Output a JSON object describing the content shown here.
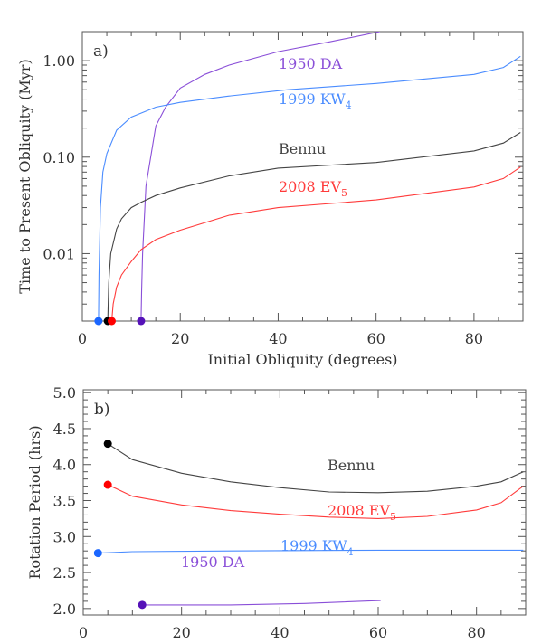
{
  "chart_data": [
    {
      "type": "line",
      "panel_label": "a)",
      "xlabel": "Initial Obliquity (degrees)",
      "ylabel": "Time to Present Obliquity (Myr)",
      "xlim": [
        0,
        90
      ],
      "ylim": [
        0.002,
        2
      ],
      "yscale": "log",
      "xticks": [
        "0",
        "20",
        "40",
        "60",
        "80"
      ],
      "yticks": [
        "0.01",
        "0.10",
        "1.00"
      ],
      "grid": false,
      "series": [
        {
          "name": "1950 DA",
          "label_sub": "",
          "color": "#8a4fd8",
          "marker_color": "#5512b8",
          "x": [
            12,
            12.1,
            12.3,
            13,
            15,
            17,
            20,
            25,
            30,
            40,
            50,
            60.8
          ],
          "y": [
            0.002,
            0.004,
            0.01,
            0.05,
            0.21,
            0.33,
            0.52,
            0.72,
            0.9,
            1.24,
            1.55,
            2.0
          ]
        },
        {
          "name": "1999 KW",
          "label_sub": "4",
          "color": "#4a8cff",
          "marker_color": "#1a66ff",
          "x": [
            3.3,
            3.4,
            3.7,
            4.2,
            5,
            7,
            10,
            15,
            20,
            30,
            42,
            60,
            80,
            86,
            89.5
          ],
          "y": [
            0.002,
            0.006,
            0.03,
            0.07,
            0.109,
            0.19,
            0.26,
            0.33,
            0.37,
            0.43,
            0.5,
            0.58,
            0.72,
            0.85,
            1.11
          ]
        },
        {
          "name": "Bennu",
          "label_sub": "",
          "color": "#444444",
          "marker_color": "#000000",
          "x": [
            5.2,
            5.4,
            5.8,
            7,
            8,
            10,
            12,
            15,
            20,
            30,
            40,
            60,
            80,
            86,
            89.5
          ],
          "y": [
            0.002,
            0.005,
            0.01,
            0.018,
            0.023,
            0.03,
            0.034,
            0.04,
            0.048,
            0.064,
            0.077,
            0.088,
            0.116,
            0.14,
            0.18
          ]
        },
        {
          "name": "2008 EV",
          "label_sub": "5",
          "color": "#ff3b3b",
          "marker_color": "#ff0000",
          "x": [
            6.0,
            6.3,
            7,
            8,
            10,
            12,
            15,
            20,
            30,
            40,
            60,
            80,
            86,
            89.5
          ],
          "y": [
            0.002,
            0.003,
            0.0045,
            0.006,
            0.0083,
            0.011,
            0.014,
            0.0175,
            0.025,
            0.03,
            0.036,
            0.049,
            0.06,
            0.079
          ]
        }
      ]
    },
    {
      "type": "line",
      "panel_label": "b)",
      "xlabel": "Obliquity (degrees)",
      "ylabel": "Rotation Period (hrs)",
      "xlim": [
        0,
        90
      ],
      "ylim": [
        1.91,
        5.04
      ],
      "xticks": [
        "0",
        "20",
        "40",
        "60",
        "80"
      ],
      "yticks": [
        "2.0",
        "2.5",
        "3.0",
        "3.5",
        "4.0",
        "4.5",
        "5.0"
      ],
      "grid": false,
      "series": [
        {
          "name": "Bennu",
          "label_sub": "",
          "color": "#444444",
          "marker_color": "#000000",
          "x": [
            5,
            10,
            20,
            30,
            40,
            50,
            60,
            70,
            80,
            85,
            89.5
          ],
          "y": [
            4.29,
            4.07,
            3.88,
            3.76,
            3.68,
            3.62,
            3.61,
            3.63,
            3.7,
            3.76,
            3.9
          ]
        },
        {
          "name": "2008 EV",
          "label_sub": "5",
          "color": "#ff3b3b",
          "marker_color": "#ff0000",
          "x": [
            5,
            10,
            20,
            30,
            40,
            50,
            60,
            70,
            80,
            85,
            89.5
          ],
          "y": [
            3.72,
            3.56,
            3.44,
            3.36,
            3.31,
            3.27,
            3.25,
            3.28,
            3.37,
            3.47,
            3.7
          ]
        },
        {
          "name": "1999 KW",
          "label_sub": "4",
          "color": "#4a8cff",
          "marker_color": "#1a66ff",
          "x": [
            3,
            10,
            30,
            60,
            89.5
          ],
          "y": [
            2.77,
            2.79,
            2.8,
            2.81,
            2.81
          ]
        },
        {
          "name": "1950 DA",
          "label_sub": "",
          "color": "#8a4fd8",
          "marker_color": "#5512b8",
          "x": [
            12,
            30,
            45,
            60.5
          ],
          "y": [
            2.05,
            2.05,
            2.07,
            2.11
          ]
        }
      ]
    }
  ]
}
